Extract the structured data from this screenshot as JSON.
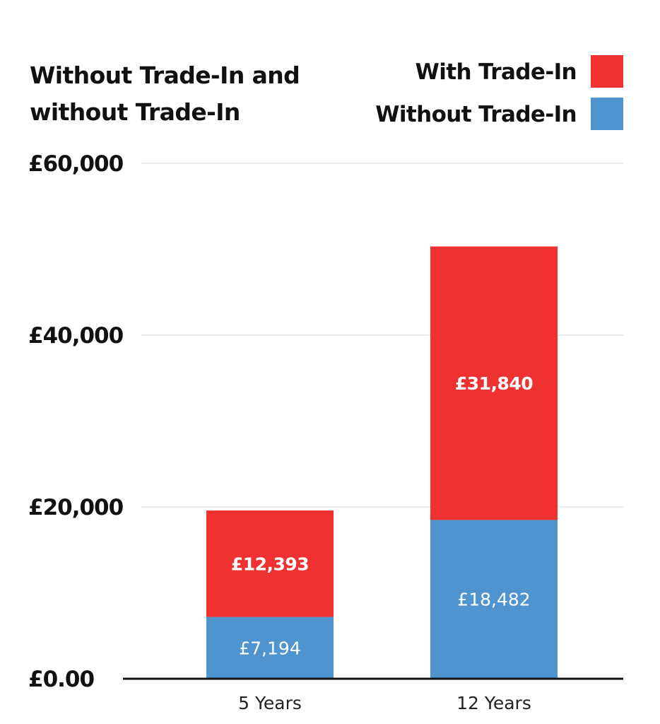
{
  "chart_data": {
    "type": "bar",
    "stacked": true,
    "title": [
      "Without Trade-In and",
      "without Trade-In"
    ],
    "categories": [
      "5 Years",
      "12 Years"
    ],
    "series": [
      {
        "name": "Without Trade-In",
        "color": "#4f93cf",
        "values": [
          7194,
          18482
        ],
        "labels": [
          "£7,194",
          "£18,482"
        ],
        "label_style": "light"
      },
      {
        "name": "With Trade-In",
        "color": "#ef3131",
        "values": [
          12393,
          31840
        ],
        "labels": [
          "£12,393",
          "£31,840"
        ],
        "label_style": "bold"
      }
    ],
    "legend_order": [
      "With Trade-In",
      "Without Trade-In"
    ],
    "legend_position": "top-right",
    "ylim": [
      0,
      60000
    ],
    "yticks": [
      {
        "value": 0,
        "label": "£0.00"
      },
      {
        "value": 20000,
        "label": "£20,000"
      },
      {
        "value": 40000,
        "label": "£40,000"
      },
      {
        "value": 60000,
        "label": "£60,000"
      }
    ],
    "grid": true,
    "xlabel": "",
    "ylabel": ""
  }
}
